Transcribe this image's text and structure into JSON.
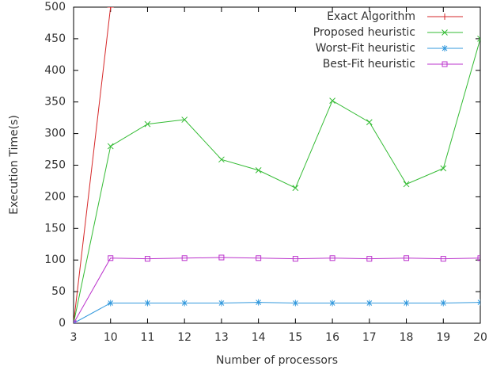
{
  "chart_data": {
    "type": "line",
    "x_label": "Number of processors",
    "y_label": "Execution Time(s)",
    "categories": [
      "3",
      "10",
      "11",
      "12",
      "13",
      "14",
      "15",
      "16",
      "17",
      "18",
      "19",
      "20"
    ],
    "series": [
      {
        "name": "Exact Algorithm",
        "color": "#d62728",
        "marker": "plus",
        "values": [
          0,
          500,
          null,
          null,
          null,
          null,
          null,
          null,
          null,
          null,
          null,
          null
        ]
      },
      {
        "name": "Proposed heuristic",
        "color": "#33bb33",
        "marker": "cross",
        "values": [
          0,
          280,
          315,
          322,
          259,
          242,
          214,
          352,
          318,
          220,
          245,
          450
        ]
      },
      {
        "name": "Worst-Fit heuristic",
        "color": "#3399dd",
        "marker": "star",
        "values": [
          0,
          32,
          32,
          32,
          32,
          33,
          32,
          32,
          32,
          32,
          32,
          33
        ]
      },
      {
        "name": "Best-Fit heuristic",
        "color": "#bb33cc",
        "marker": "square",
        "values": [
          0,
          103,
          102,
          103,
          104,
          103,
          102,
          103,
          102,
          103,
          102,
          103
        ]
      }
    ],
    "ylim": [
      0,
      500
    ],
    "yticks": [
      0,
      50,
      100,
      150,
      200,
      250,
      300,
      350,
      400,
      450,
      500
    ],
    "legend": "top-right"
  }
}
